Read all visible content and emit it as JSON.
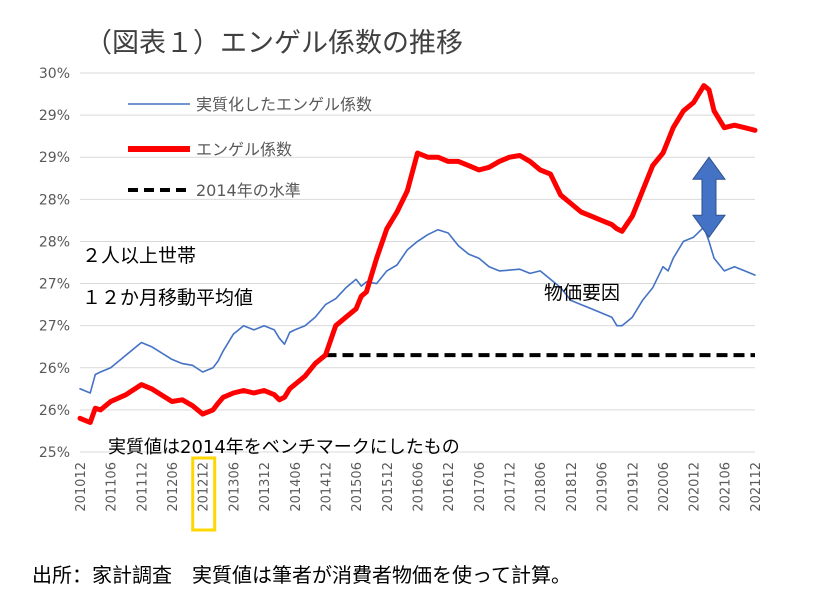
{
  "chart_data": {
    "type": "line",
    "title": "（図表１）エンゲル係数の推移",
    "y_ticks": [
      "25%",
      "26%",
      "26%",
      "27%",
      "27%",
      "28%",
      "28%",
      "29%",
      "29%",
      "30%"
    ],
    "y_tick_values": [
      25,
      25.5,
      26,
      26.5,
      27,
      27.5,
      28,
      28.5,
      29,
      29.5
    ],
    "ylim": [
      25,
      29.5
    ],
    "x_ticks": [
      "201012",
      "201106",
      "201112",
      "201206",
      "201212",
      "201306",
      "201312",
      "201406",
      "201412",
      "201506",
      "201512",
      "201606",
      "201612",
      "201706",
      "201712",
      "201806",
      "201812",
      "201906",
      "201912",
      "202006",
      "202012",
      "202106",
      "202112"
    ],
    "x_tick_positions": [
      0,
      6,
      12,
      18,
      24,
      30,
      36,
      42,
      48,
      54,
      60,
      66,
      72,
      78,
      84,
      90,
      96,
      102,
      108,
      114,
      120,
      126,
      132
    ],
    "x_label_every": 6,
    "x_point_count": 133,
    "highlighted_x_tick": "201212",
    "grid": true,
    "legend_position": "top-left",
    "series": [
      {
        "name": "実質化したエンゲル係数",
        "color": "#4472c4",
        "style": "thin",
        "x": [
          0,
          2,
          3,
          4,
          6,
          9,
          12,
          14,
          18,
          20,
          22,
          24,
          26,
          27,
          28,
          30,
          32,
          34,
          36,
          38,
          39,
          40,
          41,
          42,
          44,
          46,
          48,
          50,
          52,
          54,
          55,
          56,
          58,
          60,
          62,
          64,
          66,
          68,
          70,
          72,
          74,
          76,
          78,
          80,
          82,
          84,
          86,
          88,
          90,
          92,
          94,
          96,
          98,
          100,
          102,
          104,
          105,
          106,
          108,
          110,
          112,
          114,
          115,
          116,
          118,
          120,
          122,
          123,
          124,
          126,
          128,
          130,
          132
        ],
        "values": [
          25.75,
          25.7,
          25.92,
          25.95,
          26.0,
          26.15,
          26.3,
          26.25,
          26.1,
          26.05,
          26.03,
          25.95,
          26.0,
          26.08,
          26.2,
          26.4,
          26.5,
          26.45,
          26.5,
          26.45,
          26.35,
          26.28,
          26.42,
          26.45,
          26.5,
          26.6,
          26.75,
          26.82,
          26.95,
          27.05,
          26.97,
          27.02,
          27.0,
          27.15,
          27.22,
          27.4,
          27.5,
          27.58,
          27.64,
          27.6,
          27.45,
          27.35,
          27.3,
          27.2,
          27.15,
          27.16,
          27.17,
          27.12,
          27.15,
          27.05,
          26.95,
          26.8,
          26.75,
          26.7,
          26.65,
          26.6,
          26.5,
          26.5,
          26.6,
          26.8,
          26.95,
          27.2,
          27.15,
          27.3,
          27.5,
          27.55,
          27.67,
          27.5,
          27.3,
          27.15,
          27.2,
          27.15,
          27.1
        ]
      },
      {
        "name": "エンゲル係数",
        "color": "#ff0000",
        "style": "thick",
        "x": [
          0,
          2,
          3,
          4,
          6,
          9,
          12,
          14,
          18,
          20,
          22,
          24,
          26,
          27,
          28,
          30,
          32,
          34,
          36,
          38,
          39,
          40,
          41,
          42,
          44,
          46,
          48,
          50,
          52,
          54,
          55,
          56,
          58,
          60,
          62,
          64,
          66,
          68,
          70,
          72,
          74,
          76,
          78,
          80,
          82,
          84,
          86,
          88,
          90,
          92,
          94,
          96,
          98,
          100,
          102,
          104,
          105,
          106,
          108,
          110,
          112,
          114,
          115,
          116,
          118,
          120,
          122,
          123,
          124,
          126,
          128,
          130,
          132
        ],
        "values": [
          25.4,
          25.35,
          25.52,
          25.5,
          25.6,
          25.68,
          25.8,
          25.75,
          25.6,
          25.62,
          25.55,
          25.45,
          25.5,
          25.58,
          25.65,
          25.7,
          25.73,
          25.7,
          25.73,
          25.68,
          25.62,
          25.65,
          25.75,
          25.8,
          25.9,
          26.05,
          26.15,
          26.5,
          26.6,
          26.7,
          26.85,
          26.9,
          27.3,
          27.65,
          27.85,
          28.1,
          28.55,
          28.5,
          28.5,
          28.45,
          28.45,
          28.4,
          28.35,
          28.38,
          28.45,
          28.5,
          28.52,
          28.45,
          28.35,
          28.3,
          28.05,
          27.95,
          27.85,
          27.8,
          27.75,
          27.7,
          27.65,
          27.62,
          27.8,
          28.1,
          28.4,
          28.55,
          28.7,
          28.85,
          29.05,
          29.15,
          29.35,
          29.3,
          29.05,
          28.85,
          28.88,
          28.85,
          28.82
        ]
      },
      {
        "name": "2014年の水準",
        "color": "#000000",
        "style": "dashed",
        "x": [
          48,
          132
        ],
        "values": [
          26.15,
          26.15
        ]
      }
    ],
    "annotations": {
      "household": "２人以上世帯",
      "moving_average": "１２か月移動平均値",
      "price_factor": "物価要因",
      "benchmark_note": "実質値は2014年をベンチマークにしたもの"
    },
    "arrow": {
      "x": 123,
      "y_from": 28.5,
      "y_to": 27.55,
      "color": "#4472c4"
    },
    "source": "出所：家計調査　実質値は筆者が消費者物価を使って計算。"
  }
}
